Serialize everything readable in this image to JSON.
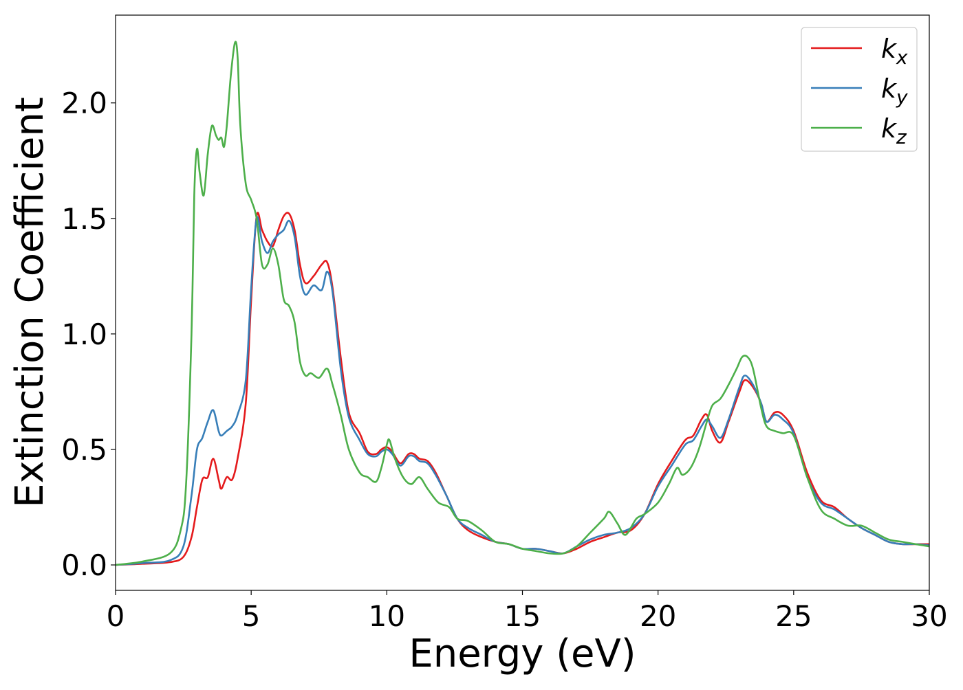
{
  "chart_data": {
    "type": "line",
    "xlabel": "Energy (eV)",
    "ylabel": "Extinction Coefficient",
    "xlim": [
      0,
      30
    ],
    "ylim": [
      -0.11,
      2.38
    ],
    "xticks": [
      0,
      5,
      10,
      15,
      20,
      25,
      30
    ],
    "yticks": [
      0.0,
      0.5,
      1.0,
      1.5,
      2.0
    ],
    "xtick_labels": [
      "0",
      "5",
      "10",
      "15",
      "20",
      "25",
      "30"
    ],
    "ytick_labels": [
      "0.0",
      "0.5",
      "1.0",
      "1.5",
      "2.0"
    ],
    "grid": false,
    "legend_position": "top-right",
    "series": [
      {
        "name": "k_x",
        "legend_base": "k",
        "legend_sub": "x",
        "color": "#e41a1c",
        "points": [
          [
            0,
            0.0
          ],
          [
            1,
            0.005
          ],
          [
            2,
            0.012
          ],
          [
            2.5,
            0.035
          ],
          [
            2.8,
            0.12
          ],
          [
            3.0,
            0.25
          ],
          [
            3.2,
            0.37
          ],
          [
            3.4,
            0.38
          ],
          [
            3.6,
            0.46
          ],
          [
            3.8,
            0.37
          ],
          [
            3.9,
            0.33
          ],
          [
            4.1,
            0.38
          ],
          [
            4.3,
            0.37
          ],
          [
            4.5,
            0.46
          ],
          [
            4.8,
            0.7
          ],
          [
            5.0,
            1.15
          ],
          [
            5.2,
            1.51
          ],
          [
            5.4,
            1.45
          ],
          [
            5.6,
            1.4
          ],
          [
            5.8,
            1.38
          ],
          [
            6.0,
            1.45
          ],
          [
            6.2,
            1.51
          ],
          [
            6.4,
            1.52
          ],
          [
            6.6,
            1.45
          ],
          [
            6.8,
            1.3
          ],
          [
            7.0,
            1.22
          ],
          [
            7.3,
            1.25
          ],
          [
            7.6,
            1.3
          ],
          [
            7.8,
            1.31
          ],
          [
            8.0,
            1.2
          ],
          [
            8.3,
            0.9
          ],
          [
            8.6,
            0.66
          ],
          [
            9.0,
            0.57
          ],
          [
            9.3,
            0.49
          ],
          [
            9.6,
            0.48
          ],
          [
            9.8,
            0.5
          ],
          [
            10.0,
            0.51
          ],
          [
            10.2,
            0.49
          ],
          [
            10.5,
            0.44
          ],
          [
            10.8,
            0.48
          ],
          [
            11.0,
            0.48
          ],
          [
            11.2,
            0.46
          ],
          [
            11.5,
            0.45
          ],
          [
            11.8,
            0.4
          ],
          [
            12.2,
            0.3
          ],
          [
            12.6,
            0.2
          ],
          [
            13.0,
            0.15
          ],
          [
            13.5,
            0.12
          ],
          [
            14.0,
            0.1
          ],
          [
            14.5,
            0.09
          ],
          [
            15.0,
            0.07
          ],
          [
            15.5,
            0.07
          ],
          [
            16.0,
            0.06
          ],
          [
            16.5,
            0.05
          ],
          [
            17.0,
            0.07
          ],
          [
            17.5,
            0.1
          ],
          [
            18.0,
            0.12
          ],
          [
            18.5,
            0.14
          ],
          [
            19.0,
            0.15
          ],
          [
            19.5,
            0.22
          ],
          [
            20.0,
            0.35
          ],
          [
            20.5,
            0.45
          ],
          [
            21.0,
            0.54
          ],
          [
            21.3,
            0.56
          ],
          [
            21.6,
            0.63
          ],
          [
            21.8,
            0.65
          ],
          [
            22.0,
            0.58
          ],
          [
            22.3,
            0.53
          ],
          [
            22.6,
            0.62
          ],
          [
            23.0,
            0.75
          ],
          [
            23.2,
            0.8
          ],
          [
            23.5,
            0.77
          ],
          [
            23.8,
            0.7
          ],
          [
            24.0,
            0.62
          ],
          [
            24.3,
            0.66
          ],
          [
            24.6,
            0.65
          ],
          [
            25.0,
            0.58
          ],
          [
            25.5,
            0.4
          ],
          [
            26.0,
            0.28
          ],
          [
            26.5,
            0.25
          ],
          [
            27.0,
            0.2
          ],
          [
            27.5,
            0.16
          ],
          [
            28.0,
            0.13
          ],
          [
            28.5,
            0.1
          ],
          [
            29.0,
            0.09
          ],
          [
            29.5,
            0.09
          ],
          [
            30.0,
            0.09
          ]
        ]
      },
      {
        "name": "k_y",
        "legend_base": "k",
        "legend_sub": "y",
        "color": "#377eb8",
        "points": [
          [
            0,
            0.0
          ],
          [
            1,
            0.008
          ],
          [
            2,
            0.02
          ],
          [
            2.5,
            0.08
          ],
          [
            2.8,
            0.3
          ],
          [
            3.0,
            0.5
          ],
          [
            3.2,
            0.55
          ],
          [
            3.4,
            0.62
          ],
          [
            3.6,
            0.67
          ],
          [
            3.8,
            0.58
          ],
          [
            3.9,
            0.56
          ],
          [
            4.1,
            0.58
          ],
          [
            4.3,
            0.6
          ],
          [
            4.5,
            0.65
          ],
          [
            4.8,
            0.8
          ],
          [
            5.0,
            1.2
          ],
          [
            5.2,
            1.5
          ],
          [
            5.4,
            1.4
          ],
          [
            5.6,
            1.35
          ],
          [
            5.8,
            1.4
          ],
          [
            6.0,
            1.43
          ],
          [
            6.2,
            1.45
          ],
          [
            6.4,
            1.49
          ],
          [
            6.6,
            1.42
          ],
          [
            6.8,
            1.25
          ],
          [
            7.0,
            1.17
          ],
          [
            7.3,
            1.21
          ],
          [
            7.6,
            1.19
          ],
          [
            7.8,
            1.27
          ],
          [
            8.0,
            1.18
          ],
          [
            8.3,
            0.85
          ],
          [
            8.6,
            0.64
          ],
          [
            9.0,
            0.54
          ],
          [
            9.3,
            0.48
          ],
          [
            9.6,
            0.47
          ],
          [
            9.8,
            0.49
          ],
          [
            10.0,
            0.5
          ],
          [
            10.2,
            0.48
          ],
          [
            10.5,
            0.43
          ],
          [
            10.8,
            0.47
          ],
          [
            11.0,
            0.47
          ],
          [
            11.2,
            0.45
          ],
          [
            11.5,
            0.44
          ],
          [
            11.8,
            0.39
          ],
          [
            12.2,
            0.3
          ],
          [
            12.6,
            0.2
          ],
          [
            13.0,
            0.16
          ],
          [
            13.5,
            0.13
          ],
          [
            14.0,
            0.1
          ],
          [
            14.5,
            0.09
          ],
          [
            15.0,
            0.07
          ],
          [
            15.5,
            0.07
          ],
          [
            16.0,
            0.06
          ],
          [
            16.5,
            0.05
          ],
          [
            17.0,
            0.08
          ],
          [
            17.5,
            0.11
          ],
          [
            18.0,
            0.13
          ],
          [
            18.5,
            0.14
          ],
          [
            19.0,
            0.16
          ],
          [
            19.5,
            0.22
          ],
          [
            20.0,
            0.34
          ],
          [
            20.5,
            0.43
          ],
          [
            21.0,
            0.52
          ],
          [
            21.3,
            0.54
          ],
          [
            21.6,
            0.6
          ],
          [
            21.8,
            0.63
          ],
          [
            22.0,
            0.6
          ],
          [
            22.3,
            0.55
          ],
          [
            22.6,
            0.63
          ],
          [
            23.0,
            0.77
          ],
          [
            23.2,
            0.82
          ],
          [
            23.5,
            0.78
          ],
          [
            23.8,
            0.7
          ],
          [
            24.0,
            0.62
          ],
          [
            24.3,
            0.65
          ],
          [
            24.6,
            0.63
          ],
          [
            25.0,
            0.57
          ],
          [
            25.5,
            0.38
          ],
          [
            26.0,
            0.27
          ],
          [
            26.5,
            0.24
          ],
          [
            27.0,
            0.2
          ],
          [
            27.5,
            0.16
          ],
          [
            28.0,
            0.13
          ],
          [
            28.5,
            0.1
          ],
          [
            29.0,
            0.09
          ],
          [
            29.5,
            0.09
          ],
          [
            30.0,
            0.085
          ]
        ]
      },
      {
        "name": "k_z",
        "legend_base": "k",
        "legend_sub": "z",
        "color": "#4daf4a",
        "points": [
          [
            0,
            0.0
          ],
          [
            1,
            0.015
          ],
          [
            2,
            0.05
          ],
          [
            2.4,
            0.15
          ],
          [
            2.6,
            0.35
          ],
          [
            2.8,
            1.0
          ],
          [
            2.9,
            1.6
          ],
          [
            3.0,
            1.8
          ],
          [
            3.1,
            1.7
          ],
          [
            3.25,
            1.6
          ],
          [
            3.4,
            1.78
          ],
          [
            3.55,
            1.9
          ],
          [
            3.7,
            1.86
          ],
          [
            3.8,
            1.84
          ],
          [
            3.9,
            1.85
          ],
          [
            4.0,
            1.81
          ],
          [
            4.1,
            1.9
          ],
          [
            4.25,
            2.12
          ],
          [
            4.4,
            2.26
          ],
          [
            4.5,
            2.2
          ],
          [
            4.6,
            1.9
          ],
          [
            4.8,
            1.65
          ],
          [
            5.0,
            1.58
          ],
          [
            5.2,
            1.5
          ],
          [
            5.4,
            1.3
          ],
          [
            5.6,
            1.3
          ],
          [
            5.8,
            1.37
          ],
          [
            6.0,
            1.3
          ],
          [
            6.2,
            1.15
          ],
          [
            6.4,
            1.12
          ],
          [
            6.6,
            1.05
          ],
          [
            6.8,
            0.88
          ],
          [
            7.0,
            0.82
          ],
          [
            7.2,
            0.83
          ],
          [
            7.5,
            0.81
          ],
          [
            7.8,
            0.85
          ],
          [
            8.0,
            0.78
          ],
          [
            8.3,
            0.65
          ],
          [
            8.6,
            0.5
          ],
          [
            9.0,
            0.4
          ],
          [
            9.3,
            0.38
          ],
          [
            9.6,
            0.36
          ],
          [
            9.8,
            0.42
          ],
          [
            10.0,
            0.52
          ],
          [
            10.1,
            0.54
          ],
          [
            10.3,
            0.46
          ],
          [
            10.6,
            0.38
          ],
          [
            10.9,
            0.35
          ],
          [
            11.2,
            0.38
          ],
          [
            11.5,
            0.33
          ],
          [
            11.9,
            0.27
          ],
          [
            12.3,
            0.25
          ],
          [
            12.6,
            0.2
          ],
          [
            13.0,
            0.19
          ],
          [
            13.5,
            0.15
          ],
          [
            14.0,
            0.1
          ],
          [
            14.5,
            0.09
          ],
          [
            15.0,
            0.07
          ],
          [
            15.5,
            0.06
          ],
          [
            16.0,
            0.05
          ],
          [
            16.5,
            0.05
          ],
          [
            17.0,
            0.08
          ],
          [
            17.5,
            0.14
          ],
          [
            18.0,
            0.2
          ],
          [
            18.2,
            0.23
          ],
          [
            18.5,
            0.18
          ],
          [
            18.8,
            0.13
          ],
          [
            19.2,
            0.2
          ],
          [
            19.5,
            0.22
          ],
          [
            20.0,
            0.27
          ],
          [
            20.4,
            0.35
          ],
          [
            20.7,
            0.42
          ],
          [
            20.9,
            0.39
          ],
          [
            21.2,
            0.42
          ],
          [
            21.5,
            0.5
          ],
          [
            21.8,
            0.62
          ],
          [
            22.0,
            0.69
          ],
          [
            22.3,
            0.72
          ],
          [
            22.6,
            0.78
          ],
          [
            22.9,
            0.85
          ],
          [
            23.1,
            0.9
          ],
          [
            23.3,
            0.9
          ],
          [
            23.5,
            0.85
          ],
          [
            23.8,
            0.68
          ],
          [
            24.0,
            0.6
          ],
          [
            24.3,
            0.58
          ],
          [
            24.6,
            0.57
          ],
          [
            25.0,
            0.56
          ],
          [
            25.5,
            0.38
          ],
          [
            26.0,
            0.24
          ],
          [
            26.5,
            0.2
          ],
          [
            27.0,
            0.17
          ],
          [
            27.5,
            0.17
          ],
          [
            28.0,
            0.14
          ],
          [
            28.5,
            0.11
          ],
          [
            29.0,
            0.1
          ],
          [
            29.5,
            0.09
          ],
          [
            30.0,
            0.08
          ]
        ]
      }
    ]
  }
}
